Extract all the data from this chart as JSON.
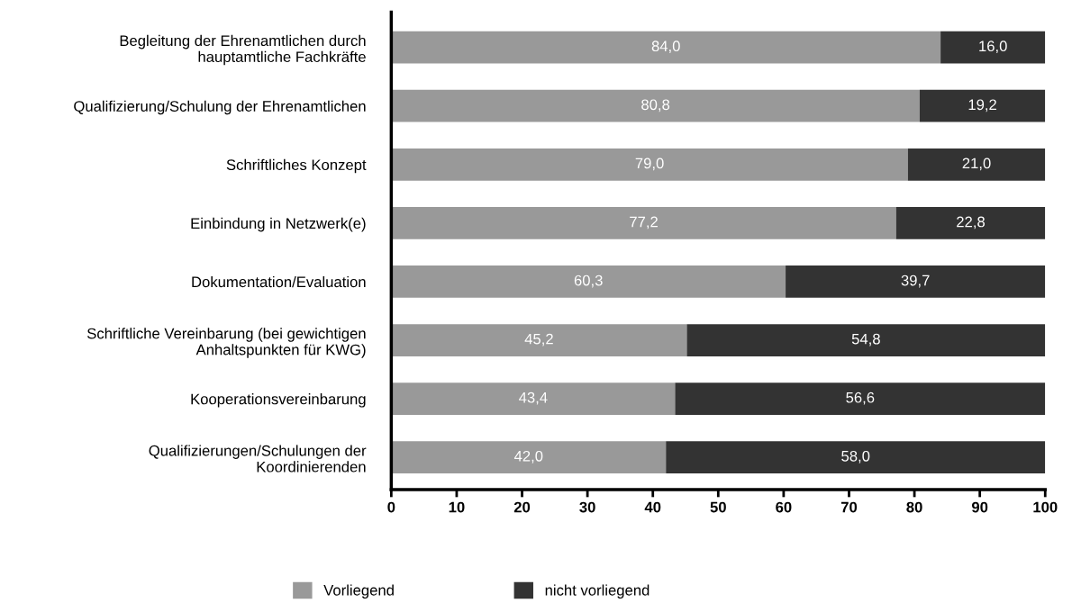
{
  "chart_data": {
    "type": "bar",
    "orientation": "horizontal",
    "stacked": true,
    "categories": [
      "Begleitung der Ehrenamtlichen durch\nhauptamtliche Fachkräfte",
      "Qualifizierung/Schulung der Ehrenamtlichen",
      "Schriftliches Konzept",
      "Einbindung in Netzwerk(e)",
      "Dokumentation/Evaluation",
      "Schriftliche Vereinbarung (bei gewichtigen\nAnhaltspunkten für KWG)",
      "Kooperationsvereinbarung",
      "Qualifizierungen/Schulungen der\nKoordinierenden"
    ],
    "series": [
      {
        "name": "Vorliegend",
        "color": "#999999",
        "values": [
          84.0,
          80.8,
          79.0,
          77.2,
          60.3,
          45.2,
          43.4,
          42.0
        ],
        "value_labels": [
          "84,0",
          "80,8",
          "79,0",
          "77,2",
          "60,3",
          "45,2",
          "43,4",
          "42,0"
        ]
      },
      {
        "name": "nicht vorliegend",
        "color": "#333333",
        "values": [
          16.0,
          19.2,
          21.0,
          22.8,
          39.7,
          54.8,
          56.6,
          58.0
        ],
        "value_labels": [
          "16,0",
          "19,2",
          "21,0",
          "22,8",
          "39,7",
          "54,8",
          "56,6",
          "58,0"
        ]
      }
    ],
    "xlim": [
      0,
      100
    ],
    "xticks": [
      0,
      10,
      20,
      30,
      40,
      50,
      60,
      70,
      80,
      90,
      100
    ],
    "grid": false,
    "legend": "bottom"
  }
}
